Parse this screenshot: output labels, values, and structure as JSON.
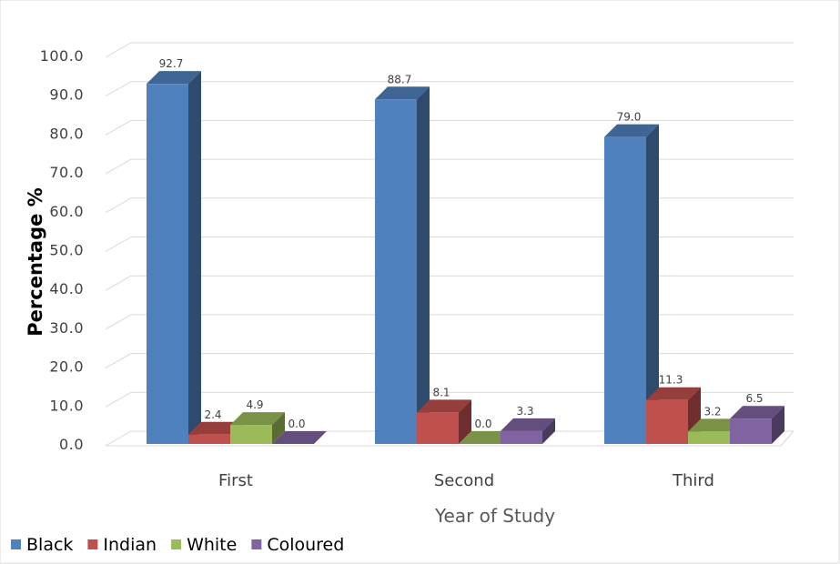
{
  "chart_data": {
    "type": "bar",
    "categories": [
      "First",
      "Second",
      "Third"
    ],
    "series": [
      {
        "name": "Black",
        "values": [
          92.7,
          88.7,
          79.0
        ],
        "labels": [
          "92.7",
          "88.7",
          "79.0"
        ],
        "color": "#4F81BD"
      },
      {
        "name": "Indian",
        "values": [
          2.4,
          8.1,
          11.3
        ],
        "labels": [
          "2.4",
          "8.1",
          "11.3"
        ],
        "color": "#C0504D"
      },
      {
        "name": "White",
        "values": [
          4.9,
          0.0,
          3.2
        ],
        "labels": [
          "4.9",
          "0.0",
          "3.2"
        ],
        "color": "#9BBB59"
      },
      {
        "name": "Coloured",
        "values": [
          0.0,
          3.3,
          6.5
        ],
        "labels": [
          "0.0",
          "3.3",
          "6.5"
        ],
        "color": "#8064A2"
      }
    ],
    "yticks": [
      "0.0",
      "10.0",
      "20.0",
      "30.0",
      "40.0",
      "50.0",
      "60.0",
      "70.0",
      "80.0",
      "90.0",
      "100.0"
    ],
    "xlabel": "Year of Study",
    "ylabel": "Percentage %",
    "ylim": [
      0,
      100
    ],
    "grid": true,
    "legend_position": "bottom-left",
    "style": "3d-clustered-column"
  }
}
